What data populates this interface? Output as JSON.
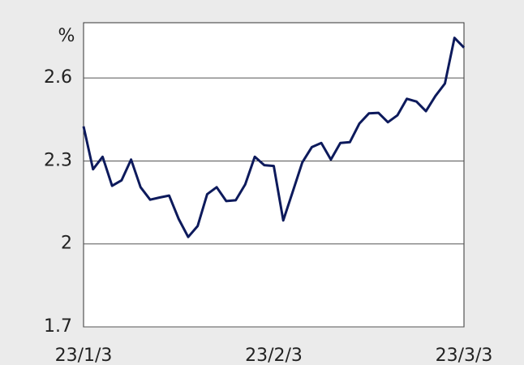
{
  "chart_data": {
    "type": "line",
    "ylabel": "%",
    "categories": [
      "23/1/3",
      null,
      null,
      null,
      null,
      null,
      null,
      null,
      null,
      null,
      null,
      null,
      null,
      null,
      null,
      null,
      null,
      null,
      null,
      null,
      "23/2/3",
      null,
      null,
      null,
      null,
      null,
      null,
      null,
      null,
      null,
      null,
      null,
      null,
      null,
      null,
      null,
      null,
      null,
      null,
      null,
      "23/3/3"
    ],
    "series": [
      {
        "color": "#0d1a5c",
        "values": [
          2.425,
          2.27,
          2.315,
          2.21,
          2.23,
          2.305,
          2.205,
          2.16,
          2.168,
          2.175,
          2.09,
          2.025,
          2.065,
          2.18,
          2.205,
          2.155,
          2.158,
          2.215,
          2.315,
          2.285,
          2.282,
          2.085,
          2.19,
          2.295,
          2.35,
          2.365,
          2.305,
          2.365,
          2.368,
          2.435,
          2.472,
          2.474,
          2.44,
          2.465,
          2.525,
          2.515,
          2.48,
          2.535,
          2.58,
          2.745,
          2.71
        ]
      }
    ],
    "ylim": [
      1.7,
      2.8
    ],
    "yticks": [
      1.7,
      2.0,
      2.3,
      2.6
    ],
    "grid": true
  }
}
